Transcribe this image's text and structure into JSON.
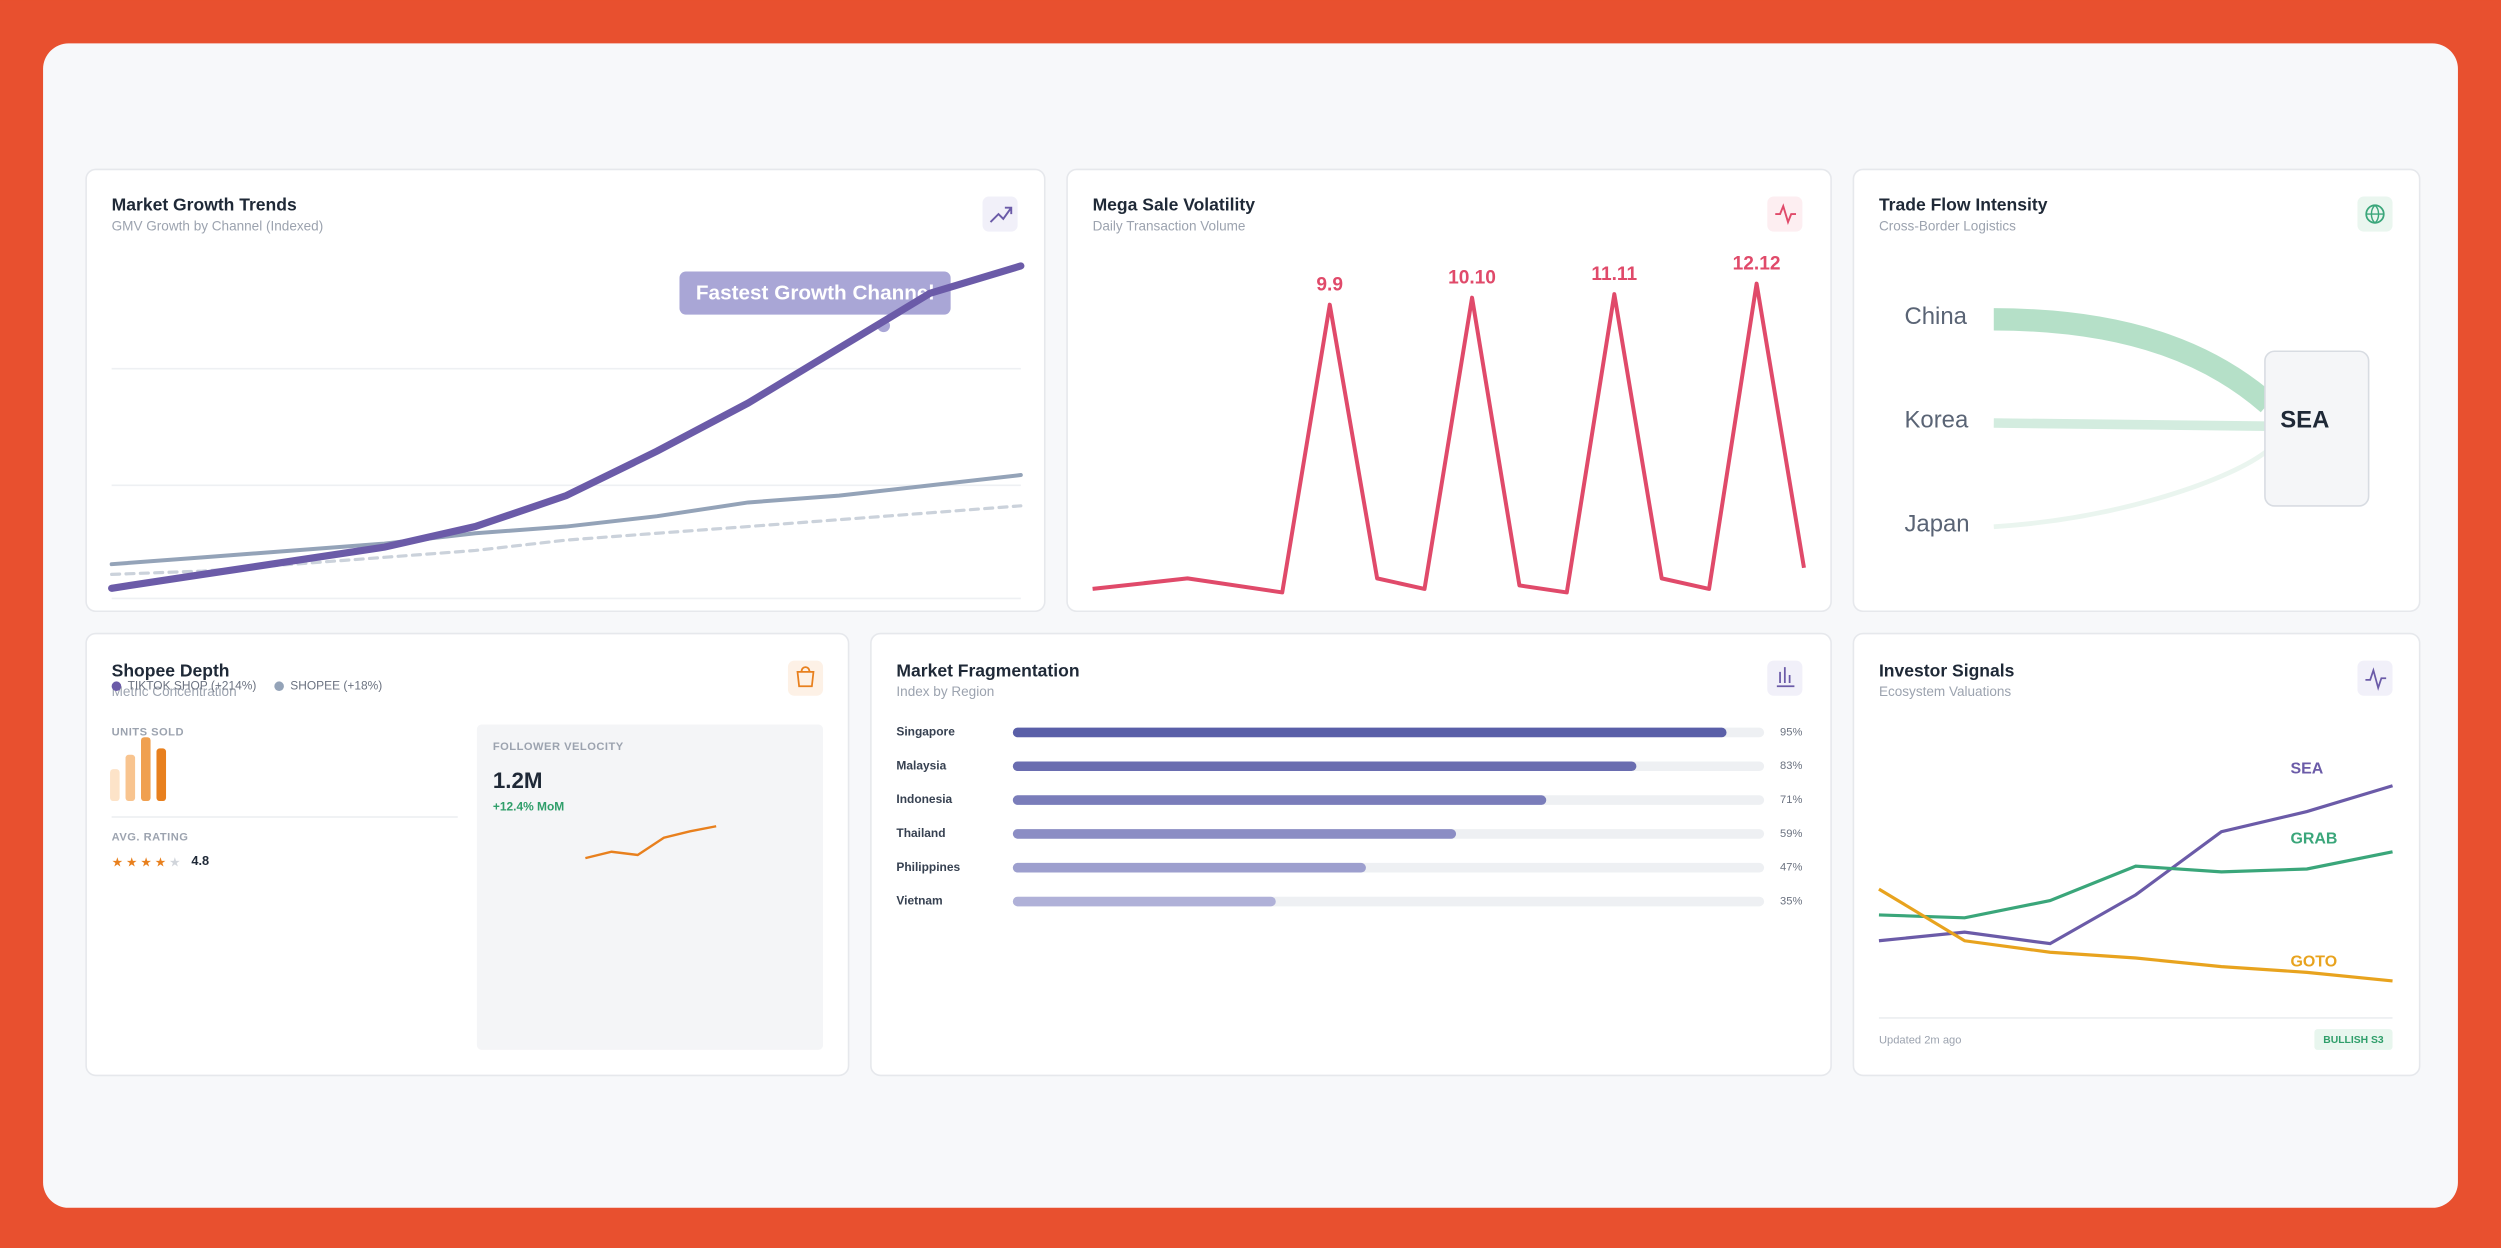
{
  "cards": [
    {
      "title": "Market Growth Trends",
      "subtitle": "GMV Growth by Channel (Indexed)",
      "chart": {
        "type": "line",
        "annotation": "Fastest Growth Channel",
        "x": [
          0,
          1,
          2,
          3,
          4,
          5,
          6,
          7,
          8,
          9,
          10
        ],
        "xlim": [
          0,
          10
        ],
        "ylim": [
          0,
          100
        ],
        "yticks": [
          0,
          33,
          67
        ],
        "series": [
          {
            "name": "TIKTOK SHOP (+214%)",
            "color": "#6b5ba8",
            "values": [
              3,
              7,
              11,
              15,
              21,
              30,
              43,
              57,
              73,
              89,
              97
            ]
          },
          {
            "name": "SHOPEE (+18%)",
            "color": "#94a3b8",
            "values": [
              10,
              12,
              14,
              16,
              19,
              21,
              24,
              28,
              30,
              33,
              36
            ]
          },
          {
            "color": "#cbd2db",
            "dashed": true,
            "values": [
              7,
              8,
              10,
              12,
              14,
              17,
              19,
              21,
              23,
              25,
              27
            ]
          }
        ]
      }
    },
    {
      "title": "Mega Sale Volatility",
      "subtitle": "Daily Transaction Volume",
      "chart": {
        "type": "line",
        "color": "#e04a6a",
        "x": [
          0,
          2,
          4,
          5,
          6,
          7,
          8,
          9,
          10,
          11,
          12,
          13,
          14,
          15
        ],
        "xlim": [
          0,
          15
        ],
        "ylim": [
          0,
          100
        ],
        "values": [
          5,
          8,
          4,
          86,
          8,
          5,
          88,
          6,
          4,
          89,
          8,
          5,
          92,
          11
        ],
        "peak_labels": [
          {
            "index": 3,
            "label": "9.9"
          },
          {
            "index": 6,
            "label": "10.10"
          },
          {
            "index": 9,
            "label": "11.11"
          },
          {
            "index": 12,
            "label": "12.12"
          }
        ]
      }
    },
    {
      "title": "Trade Flow Intensity",
      "subtitle": "Cross-Border Logistics",
      "sources": [
        "China",
        "Korea",
        "Japan"
      ],
      "target": "SEA"
    },
    {
      "title": "Shopee Depth",
      "subtitle": "Metric Concentration",
      "units_sold": {
        "label": "UNITS SOLD",
        "ylim": [
          0,
          40
        ],
        "values": [
          20,
          29,
          40,
          33
        ],
        "colors": [
          "#fde3c8",
          "#f8c48f",
          "#f0a050",
          "#e8801e"
        ]
      },
      "avg_rating": {
        "label": "AVG. RATING",
        "value": "4.8"
      },
      "follower_velocity": {
        "label": "FOLLOWER VELOCITY",
        "value": "1.2M",
        "change": "+12.4% MoM",
        "color": "#e8801e",
        "ylim": [
          0,
          100
        ],
        "values": [
          18,
          28,
          23,
          50,
          60,
          68
        ]
      }
    },
    {
      "title": "Market Fragmentation",
      "subtitle": "Index by Region",
      "chart": {
        "type": "bar",
        "orientation": "horizontal",
        "categories": [
          "Singapore",
          "Malaysia",
          "Indonesia",
          "Thailand",
          "Philippines",
          "Vietnam"
        ],
        "values": [
          95,
          83,
          71,
          59,
          47,
          35
        ],
        "value_labels": [
          "95%",
          "83%",
          "71%",
          "59%",
          "47%",
          "35%"
        ],
        "xlim": [
          0,
          100
        ],
        "colors": [
          "#5a5fa8",
          "#6a6db0",
          "#7a7dba",
          "#8b8dc4",
          "#9d9fce",
          "#b0b1d8"
        ]
      }
    },
    {
      "title": "Investor Signals",
      "subtitle": "Ecosystem Valuations",
      "chart": {
        "type": "line",
        "x": [
          0,
          1,
          2,
          3,
          4,
          5,
          6
        ],
        "xlim": [
          0,
          6
        ],
        "ylim": [
          0,
          100
        ],
        "series": [
          {
            "name": "SEA",
            "color": "#6b5ba8",
            "values": [
              28,
              31,
              27,
              44,
              66,
              73,
              82
            ]
          },
          {
            "name": "GRAB",
            "color": "#3aa67a",
            "values": [
              37,
              36,
              42,
              54,
              52,
              53,
              59
            ]
          },
          {
            "name": "GOTO",
            "color": "#e8a31e",
            "values": [
              46,
              28,
              24,
              22,
              19,
              17,
              14
            ]
          }
        ]
      },
      "updated": "Updated 2m ago",
      "badge": "BULLISH S3"
    }
  ]
}
